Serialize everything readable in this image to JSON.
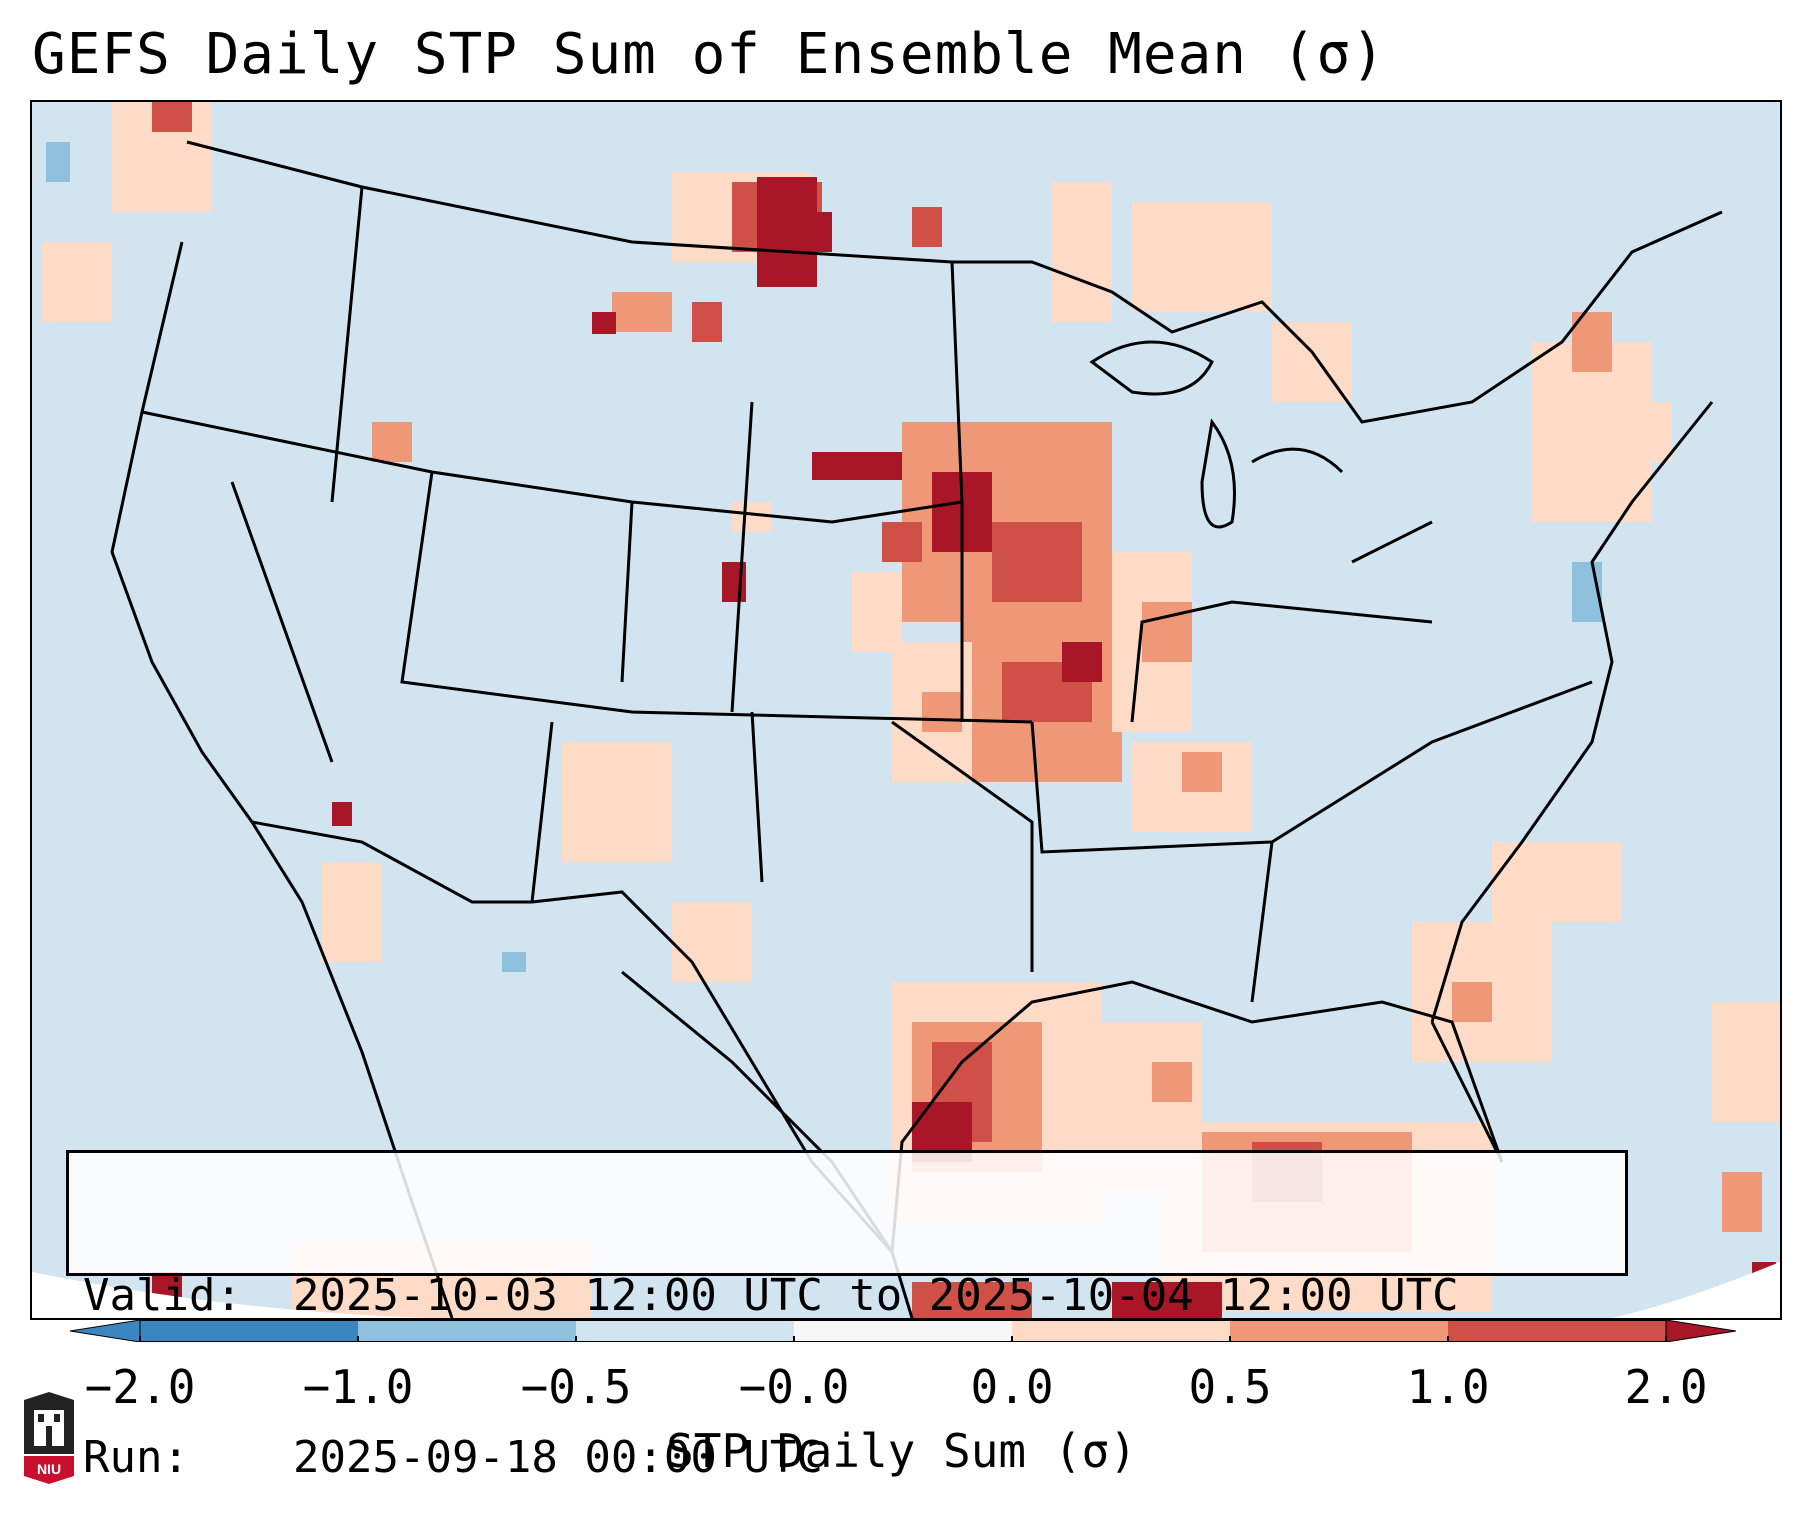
{
  "title": "GEFS Daily STP Sum of Ensemble Mean (σ)",
  "info": {
    "valid_label": "Valid:",
    "valid_value": "2025-10-03 12:00 UTC to 2025-10-04 12:00 UTC",
    "run_label": "Run:",
    "run_value": "2025-09-18 00:00 UTC"
  },
  "colorbar": {
    "label": "STP Daily Sum (σ)",
    "ticks": [
      "−2.0",
      "−1.0",
      "−0.5",
      "−0.0",
      "0.0",
      "0.5",
      "1.0",
      "2.0"
    ],
    "colors": [
      "#3a86c0",
      "#8fc1de",
      "#d1e4f0",
      "#f7f7f7",
      "#fddbc7",
      "#ef9878",
      "#ce5046",
      "#a91628"
    ],
    "extend": "both"
  },
  "map": {
    "background_color": "#d1e4f0",
    "region": "Continental United States, southern Canada, northern Mexico, Gulf of Mexico"
  },
  "logo": {
    "name": "niu-logo",
    "text": "NIU"
  }
}
